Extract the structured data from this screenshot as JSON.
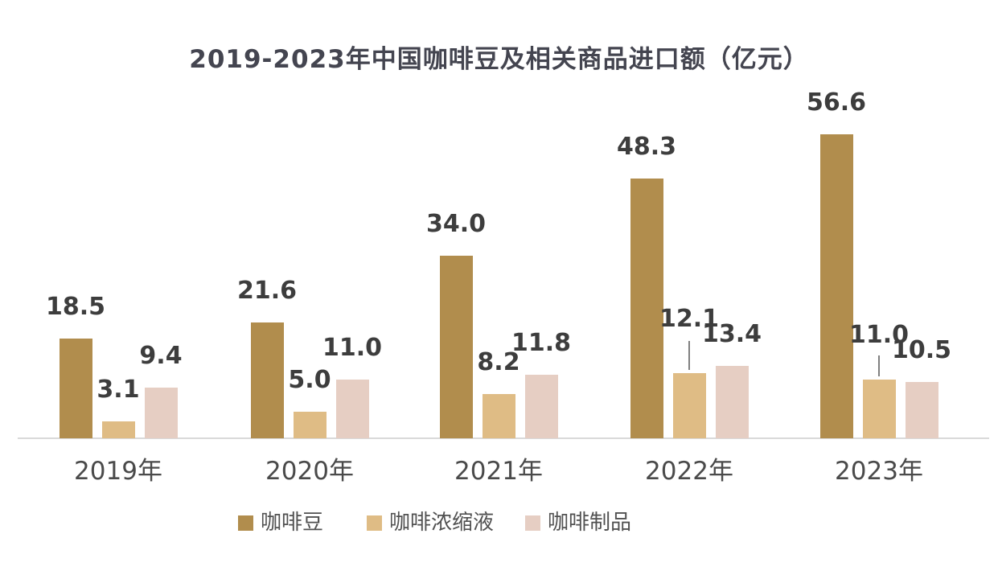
{
  "page": {
    "background": "#ffffff"
  },
  "chart_data": {
    "type": "bar",
    "title": "2019-2023年中国咖啡豆及相关商品进口额（亿元）",
    "categories": [
      "2019年",
      "2020年",
      "2021年",
      "2022年",
      "2023年"
    ],
    "series": [
      {
        "name": "咖啡豆",
        "color": "#B18D4D",
        "values": [
          18.5,
          21.6,
          34.0,
          48.3,
          56.6
        ]
      },
      {
        "name": "咖啡浓缩液",
        "color": "#DFBC85",
        "values": [
          3.1,
          5.0,
          8.2,
          12.1,
          11.0
        ]
      },
      {
        "name": "咖啡制品",
        "color": "#E6CEC3",
        "values": [
          9.4,
          11.0,
          11.8,
          13.4,
          10.5
        ]
      }
    ],
    "value_label_format": "one-decimal",
    "ylim": [
      0,
      60
    ],
    "grid": false,
    "legend_position": "bottom",
    "colors": {
      "title": "#444550",
      "value_label": "#3D3D3D",
      "category_label": "#4A4A4A",
      "legend_text": "#515151",
      "axis_line": "#D9D9D9",
      "leader_line": "#808080"
    }
  }
}
